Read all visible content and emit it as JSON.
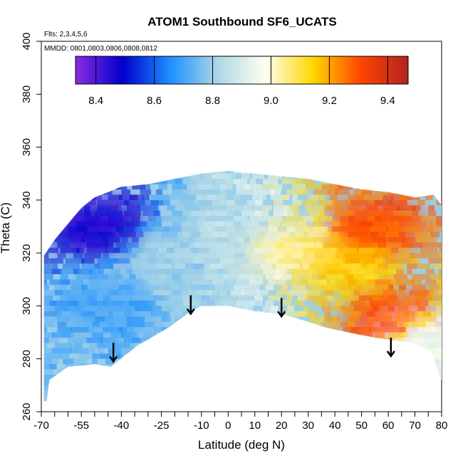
{
  "chart_data": {
    "type": "heatmap",
    "title": "ATOM1 Southbound SF6_UCATS",
    "annotations": [
      "Flts: 2,3,4,5,6",
      "MMDD: 0801,0803,0806,0808,0812"
    ],
    "xlabel": "Latitude (deg N)",
    "ylabel": "Theta (C)",
    "xlim": [
      -70,
      80
    ],
    "ylim": [
      260,
      400
    ],
    "x_tick_labels": [
      "-70",
      "-55",
      "-40",
      "-25",
      "-10",
      "0",
      "10",
      "20",
      "30",
      "40",
      "50",
      "60",
      "70",
      "80"
    ],
    "x_tick_values": [
      -70,
      -55,
      -40,
      -25,
      -10,
      0,
      10,
      20,
      30,
      40,
      50,
      60,
      70,
      80
    ],
    "x_minor_ticks": [
      -65,
      -60,
      -50,
      -45,
      -35,
      -30,
      -20,
      -15,
      -5,
      5,
      15,
      25,
      35,
      45,
      55,
      65,
      75
    ],
    "y_tick_labels": [
      "260",
      "280",
      "300",
      "320",
      "340",
      "360",
      "380",
      "400"
    ],
    "y_tick_values": [
      260,
      280,
      300,
      320,
      340,
      360,
      380,
      400
    ],
    "colorbar": {
      "range": [
        8.33,
        9.47
      ],
      "tick_labels": [
        "8.4",
        "8.6",
        "8.8",
        "9.0",
        "9.2",
        "9.4"
      ],
      "tick_values": [
        8.4,
        8.6,
        8.8,
        9.0,
        9.2,
        9.4
      ],
      "colors": [
        "#8a2be2",
        "#0000cd",
        "#1e90ff",
        "#add8e6",
        "#fffff0",
        "#ffd700",
        "#ff4500",
        "#b22222"
      ]
    },
    "data_envelope": {
      "bottom": [
        [
          -68,
          264
        ],
        [
          -67,
          272
        ],
        [
          -60,
          277
        ],
        [
          -50,
          278
        ],
        [
          -44,
          277
        ],
        [
          -34,
          285
        ],
        [
          -22,
          292
        ],
        [
          -14,
          298
        ],
        [
          -10,
          300
        ],
        [
          0,
          300
        ],
        [
          10,
          298
        ],
        [
          20,
          297
        ],
        [
          30,
          294
        ],
        [
          36,
          292
        ],
        [
          45,
          290
        ],
        [
          55,
          288
        ],
        [
          62,
          287
        ],
        [
          70,
          286
        ],
        [
          76,
          283
        ],
        [
          80,
          272
        ]
      ],
      "top": [
        [
          80,
          288
        ],
        [
          80,
          338
        ],
        [
          77,
          342
        ],
        [
          70,
          341
        ],
        [
          60,
          343
        ],
        [
          50,
          344
        ],
        [
          40,
          346
        ],
        [
          30,
          348
        ],
        [
          20,
          349
        ],
        [
          10,
          350
        ],
        [
          0,
          351
        ],
        [
          -10,
          350
        ],
        [
          -20,
          348
        ],
        [
          -30,
          346
        ],
        [
          -40,
          345
        ],
        [
          -45,
          343
        ],
        [
          -50,
          341
        ],
        [
          -55,
          337
        ],
        [
          -60,
          331
        ],
        [
          -65,
          325
        ],
        [
          -69,
          319
        ],
        [
          -69,
          264
        ]
      ]
    },
    "field_regions": [
      {
        "lat": -50,
        "theta": 330,
        "value": 8.45
      },
      {
        "lat": -45,
        "theta": 300,
        "value": 8.7
      },
      {
        "lat": -20,
        "theta": 315,
        "value": 8.8
      },
      {
        "lat": 5,
        "theta": 320,
        "value": 8.85
      },
      {
        "lat": 25,
        "theta": 320,
        "value": 9.05
      },
      {
        "lat": 45,
        "theta": 315,
        "value": 9.15
      },
      {
        "lat": 62,
        "theta": 295,
        "value": 9.3
      },
      {
        "lat": 55,
        "theta": 330,
        "value": 9.3
      },
      {
        "lat": 75,
        "theta": 285,
        "value": 8.95
      }
    ],
    "arrows": [
      {
        "lat": -43,
        "theta_from": 286,
        "theta_to": 279
      },
      {
        "lat": -14,
        "theta_from": 304,
        "theta_to": 297
      },
      {
        "lat": 20,
        "theta_from": 303,
        "theta_to": 296
      },
      {
        "lat": 61,
        "theta_from": 288,
        "theta_to": 281
      }
    ]
  }
}
